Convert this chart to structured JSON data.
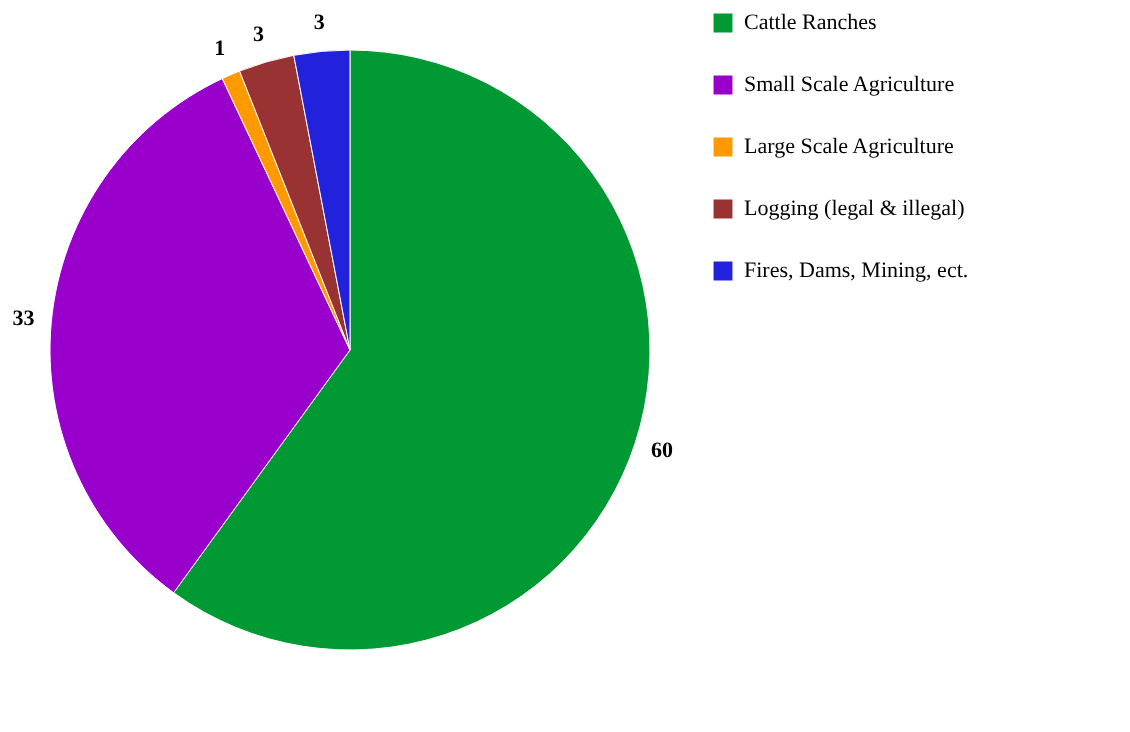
{
  "chart_data": {
    "type": "pie",
    "categories": [
      "Cattle Ranches",
      "Small Scale Agriculture",
      "Large Scale Agriculture",
      "Logging (legal & illegal)",
      "Fires, Dams, Mining, ect."
    ],
    "values": [
      60,
      33,
      1,
      3,
      3
    ],
    "colors": [
      "#009933",
      "#9900cc",
      "#ff9900",
      "#993333",
      "#2222dd"
    ],
    "data_labels": true,
    "legend": "right"
  }
}
